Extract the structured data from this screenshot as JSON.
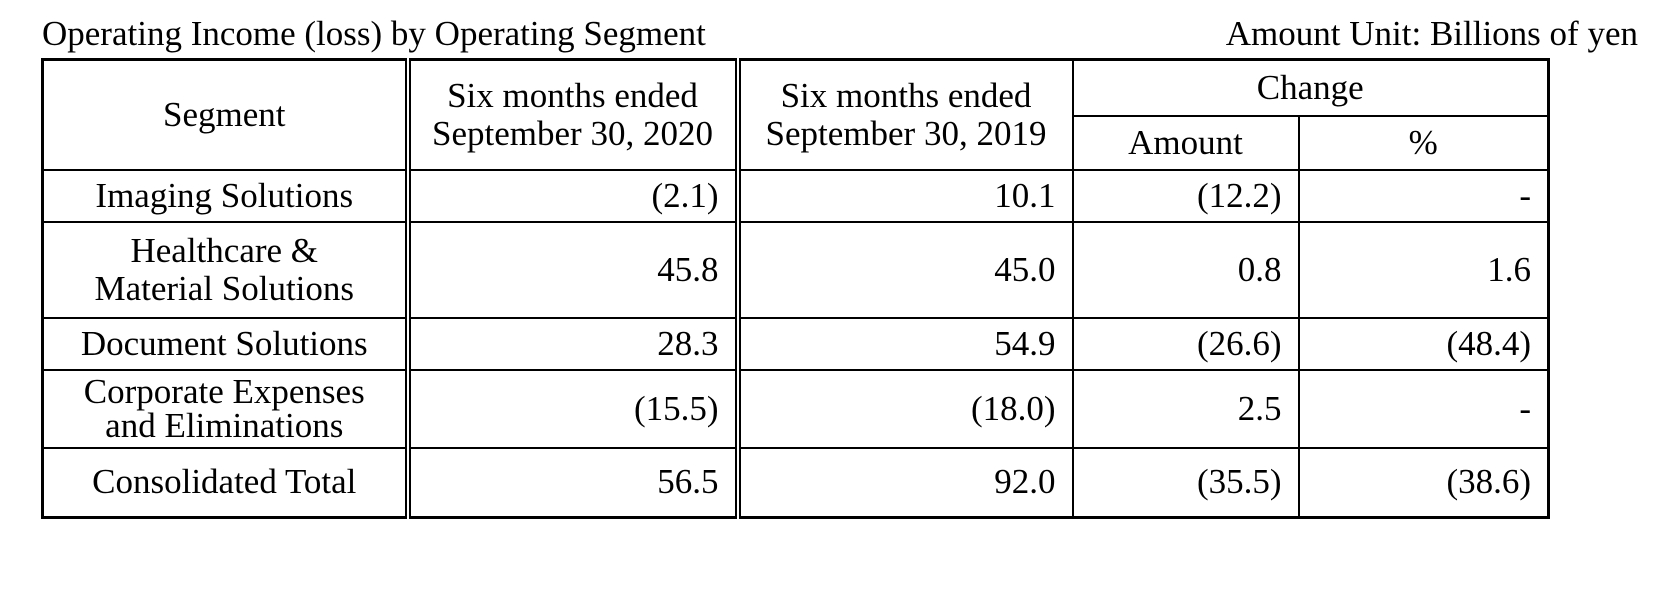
{
  "title": "Operating Income (loss) by Operating Segment",
  "unit_note": "Amount Unit: Billions of yen",
  "table": {
    "headers": {
      "segment": "Segment",
      "period_2020_line1": "Six months ended",
      "period_2020_line2": "September 30, 2020",
      "period_2019_line1": "Six months ended",
      "period_2019_line2": "September 30, 2019",
      "change": "Change",
      "amount": "Amount",
      "percent": "%"
    },
    "rows": [
      {
        "segment_line1": "Imaging Solutions",
        "segment_line2": "",
        "v2020": "(2.1)",
        "v2019": "10.1",
        "amount": "(12.2)",
        "percent": "-"
      },
      {
        "segment_line1": "Healthcare &",
        "segment_line2": "Material Solutions",
        "v2020": "45.8",
        "v2019": "45.0",
        "amount": "0.8",
        "percent": "1.6"
      },
      {
        "segment_line1": "Document Solutions",
        "segment_line2": "",
        "v2020": "28.3",
        "v2019": "54.9",
        "amount": "(26.6)",
        "percent": "(48.4)"
      },
      {
        "segment_line1": "Corporate Expenses",
        "segment_line2": "and Eliminations",
        "v2020": "(15.5)",
        "v2019": "(18.0)",
        "amount": "2.5",
        "percent": "-"
      },
      {
        "segment_line1": "Consolidated Total",
        "segment_line2": "",
        "v2020": "56.5",
        "v2019": "92.0",
        "amount": "(35.5)",
        "percent": "(38.6)"
      }
    ]
  }
}
